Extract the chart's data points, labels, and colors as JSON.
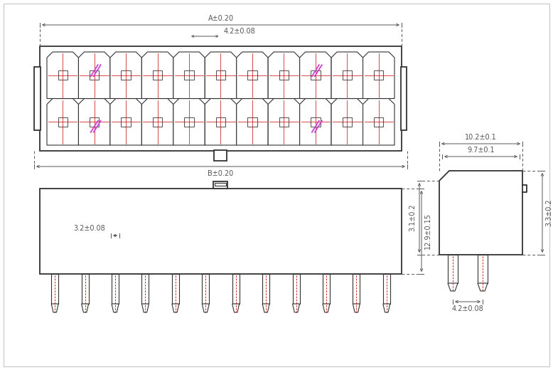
{
  "line_color": "#333333",
  "dim_color": "#555555",
  "pink_color": "#cc44cc",
  "red_color": "#cc0000",
  "dim_A": "A±0.20",
  "dim_B": "B±0.20",
  "dim_42_top": "4.2±0.08",
  "dim_129": "12.9±0.15",
  "dim_32": "3.2±0.08",
  "dim_102": "10.2±0.1",
  "dim_97": "9.7±0.1",
  "dim_31": "3.1±0.2",
  "dim_33": "3.3±0.2",
  "dim_42_side": "4.2±0.08",
  "n_cols": 11,
  "n_rows": 2
}
